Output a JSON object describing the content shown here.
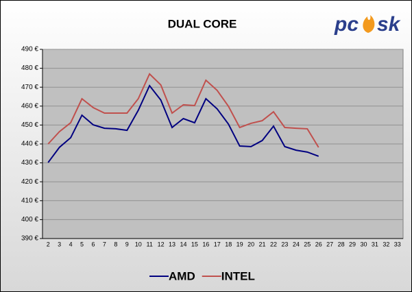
{
  "logo": {
    "left": "pc",
    "right": "sk"
  },
  "chart_data": {
    "type": "line",
    "title": "DUAL CORE",
    "categories": [
      "2",
      "3",
      "4",
      "5",
      "6",
      "7",
      "8",
      "9",
      "10",
      "11",
      "12",
      "13",
      "14",
      "15",
      "16",
      "17",
      "18",
      "19",
      "20",
      "21",
      "22",
      "23",
      "24",
      "25",
      "26",
      "27",
      "28",
      "29",
      "30",
      "31",
      "32",
      "33"
    ],
    "series": [
      {
        "name": "AMD",
        "color": "#000080",
        "values": [
          430.2,
          438.2,
          443.3,
          455.2,
          450.1,
          448.3,
          448,
          447.2,
          457.8,
          470.8,
          463.2,
          448.7,
          453.4,
          451.2,
          463.9,
          458.5,
          450.5,
          438.9,
          438.6,
          441.8,
          449.4,
          438.6,
          436.7,
          435.7,
          433.5,
          null,
          null,
          null,
          null,
          null,
          null,
          null
        ]
      },
      {
        "name": "INTEL",
        "color": "#c0504d",
        "values": [
          440,
          446.5,
          451.2,
          463.9,
          459.2,
          456.3,
          456.3,
          456.3,
          463.9,
          477,
          471.2,
          456.3,
          460.7,
          460.3,
          473.7,
          468.3,
          459.9,
          448.7,
          450.9,
          452.3,
          457,
          448.7,
          448.3,
          448,
          438.2,
          null,
          null,
          null,
          null,
          null,
          null,
          null
        ]
      }
    ],
    "ylim": [
      390,
      490
    ],
    "yticks": [
      {
        "value": 390,
        "label": "390 €"
      },
      {
        "value": 400,
        "label": "400 €"
      },
      {
        "value": 410,
        "label": "410 €"
      },
      {
        "value": 420,
        "label": "420 €"
      },
      {
        "value": 430,
        "label": "430 €"
      },
      {
        "value": 440,
        "label": "440 €"
      },
      {
        "value": 450,
        "label": "450 €"
      },
      {
        "value": 460,
        "label": "460 €"
      },
      {
        "value": 470,
        "label": "470 €"
      },
      {
        "value": 480,
        "label": "480 €"
      },
      {
        "value": 490,
        "label": "490 €"
      }
    ],
    "grid": true,
    "legend": "bottom"
  }
}
